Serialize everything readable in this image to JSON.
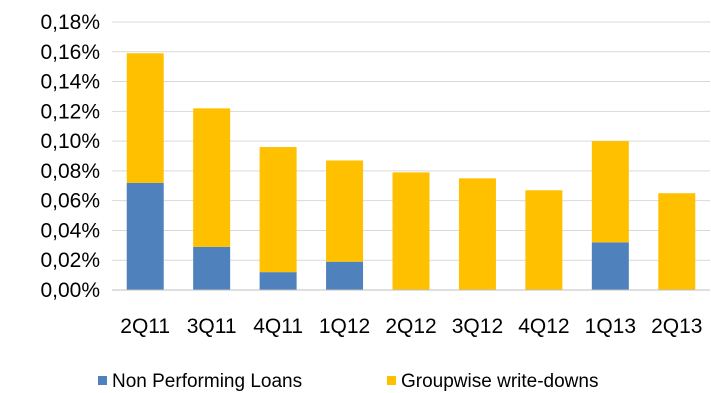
{
  "chart_data": {
    "type": "bar",
    "stacked": true,
    "categories": [
      "2Q11",
      "3Q11",
      "4Q11",
      "1Q12",
      "2Q12",
      "3Q12",
      "4Q12",
      "1Q13",
      "2Q13"
    ],
    "series": [
      {
        "name": "Non Performing Loans",
        "color": "#4F81BD",
        "values": [
          0.072,
          0.029,
          0.012,
          0.019,
          0.0,
          0.0,
          0.0,
          0.032,
          0.0
        ]
      },
      {
        "name": "Groupwise write-downs",
        "color": "#FFC000",
        "values": [
          0.087,
          0.093,
          0.084,
          0.068,
          0.079,
          0.075,
          0.067,
          0.068,
          0.065
        ]
      }
    ],
    "ylim": [
      0,
      0.18
    ],
    "yticks": [
      0,
      0.02,
      0.04,
      0.06,
      0.08,
      0.1,
      0.12,
      0.14,
      0.16,
      0.18
    ],
    "ytick_labels": [
      "0,00%",
      "0,02%",
      "0,04%",
      "0,06%",
      "0,08%",
      "0,10%",
      "0,12%",
      "0,14%",
      "0,16%",
      "0,18%"
    ],
    "grid": true,
    "grid_color": "#D9D9D9",
    "legend": "bottom"
  }
}
